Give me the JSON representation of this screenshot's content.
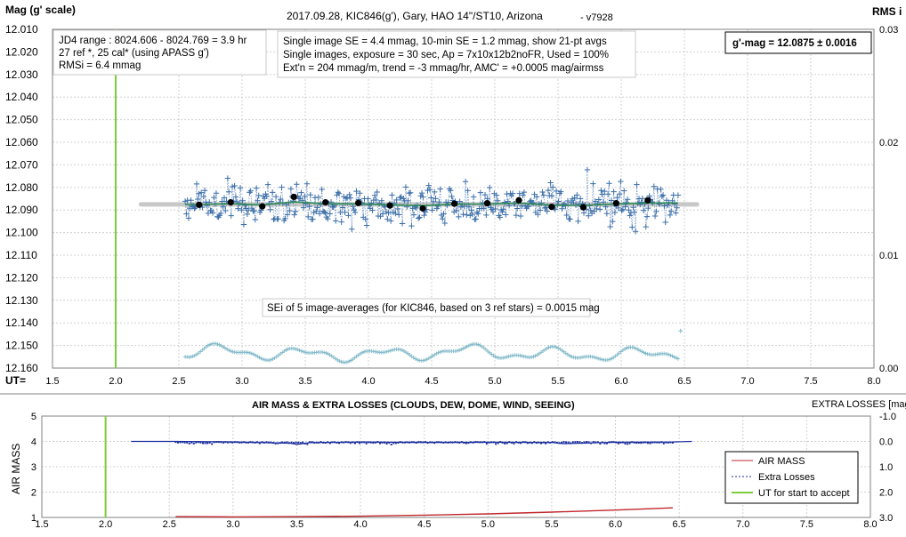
{
  "colors": {
    "points": "#3b6ea8",
    "smooth": "#2e8b57",
    "hline": "#c8c8c8",
    "accept_line": "#7ccc3c",
    "rms": "#7fb8c8",
    "airmass": "#c0282d",
    "extra_losses": "#1c2f9e",
    "grid": "#d0d0d0"
  },
  "top_chart": {
    "title": "2017.09.28,  KIC846(g'),  Gary,  HAO 14\"/ST10, Arizona",
    "version": "- v7928",
    "y_label": "Mag (g' scale)",
    "y2_label": "RMS i",
    "x_label": "UT=",
    "info_box_1": [
      "JD4 range : 8024.606 - 8024.769 =  3.9 hr",
      "27 ref *, 25 cal* (using APASS g')",
      "RMSi = 6.4 mmag"
    ],
    "info_box_2": [
      "Single image SE = 4.4 mmag, 10-min SE = 1.2 mmag, show 21-pt avgs",
      "Single images, exposure = 30 sec, Ap = 7x10x12b2noFR, Used = 100%",
      "Ext'n = 204 mmag/m, trend =  -3 mmag/hr, AMC' = +0.0005 mag/airmss"
    ],
    "result_box": "g'-mag = 12.0875 ± 0.0016",
    "sei_box": "SEi of 5 image-averages (for KIC846, based on 3 ref stars) = 0.0015 mag",
    "x_ticks": [
      "1.5",
      "2.0",
      "2.5",
      "3.0",
      "3.5",
      "4.0",
      "4.5",
      "5.0",
      "5.5",
      "6.0",
      "6.5",
      "7.0",
      "7.5",
      "8.0"
    ],
    "y_ticks": [
      "12.010",
      "12.020",
      "12.030",
      "12.040",
      "12.050",
      "12.060",
      "12.070",
      "12.080",
      "12.090",
      "12.100",
      "12.110",
      "12.120",
      "12.130",
      "12.140",
      "12.150",
      "12.160"
    ],
    "y2_ticks": [
      "0.03",
      "0.02",
      "0.01",
      "0.00"
    ]
  },
  "bottom_chart": {
    "title": "AIR MASS & EXTRA LOSSES (CLOUDS, DEW, DOME, WIND, SEEING)",
    "y_label": "AIR MASS",
    "y2_label": "EXTRA LOSSES [mag]",
    "x_ticks": [
      "1.5",
      "2.0",
      "2.5",
      "3.0",
      "3.5",
      "4.0",
      "4.5",
      "5.0",
      "5.5",
      "6.0",
      "6.5",
      "7.0",
      "7.5",
      "8.0"
    ],
    "y_ticks": [
      "5",
      "4",
      "3",
      "2",
      "1"
    ],
    "y2_ticks": [
      "-1.0",
      "0.0",
      "1.0",
      "2.0",
      "3.0"
    ],
    "legend": [
      "AIR MASS",
      "Extra Losses",
      "UT for start to accept"
    ]
  },
  "chart_data": [
    {
      "type": "scatter",
      "title": "2017.09.28,  KIC846(g'),  Gary,  HAO 14\"/ST10, Arizona",
      "xlabel": "UT=",
      "ylabel": "Mag (g' scale)",
      "xlim": [
        1.5,
        8.0
      ],
      "ylim": [
        12.16,
        12.01
      ],
      "y2lim": [
        0.0,
        0.03
      ],
      "grid": true,
      "accept_ut": 2.0,
      "mean_mag": 12.0875,
      "mean_line_x": [
        2.2,
        6.6
      ],
      "points_x_range": [
        2.55,
        6.45
      ],
      "points_scatter_mag": 0.0044,
      "series": [
        {
          "name": "21-pt avgs",
          "x": [
            2.66,
            2.91,
            3.16,
            3.41,
            3.66,
            3.92,
            4.17,
            4.43,
            4.68,
            4.94,
            5.19,
            5.45,
            5.7,
            5.96,
            6.21
          ],
          "y": [
            12.0877,
            12.0866,
            12.0884,
            12.0842,
            12.0866,
            12.0869,
            12.088,
            12.0893,
            12.0872,
            12.087,
            12.0857,
            12.0886,
            12.0888,
            12.087,
            12.0857
          ]
        }
      ],
      "rms_baseline": 0.0012,
      "rms_outlier": {
        "x": 6.47,
        "y": 0.0033
      }
    },
    {
      "type": "line",
      "title": "AIR MASS & EXTRA LOSSES (CLOUDS, DEW, DOME, WIND, SEEING)",
      "ylabel": "AIR MASS",
      "y2label": "EXTRA LOSSES [mag]",
      "xlim": [
        1.5,
        8.0
      ],
      "ylim": [
        1,
        5
      ],
      "y2lim": [
        -1.0,
        3.0
      ],
      "accept_ut": 2.0,
      "legend_position": "lower-right",
      "series": [
        {
          "name": "AIR MASS",
          "x": [
            2.55,
            3.0,
            3.5,
            4.0,
            4.5,
            5.0,
            5.5,
            6.0,
            6.45
          ],
          "y": [
            1.03,
            1.02,
            1.03,
            1.05,
            1.09,
            1.14,
            1.21,
            1.29,
            1.38
          ]
        },
        {
          "name": "Extra Losses",
          "x": [
            2.2,
            2.55,
            3.0,
            3.45,
            3.5,
            3.6,
            4.0,
            4.5,
            5.0,
            5.5,
            5.6,
            6.0,
            6.45,
            6.6
          ],
          "y": [
            0.0,
            0.0,
            0.02,
            0.07,
            0.12,
            0.05,
            0.02,
            0.04,
            0.03,
            0.04,
            0.09,
            0.03,
            0.02,
            0.0
          ]
        }
      ]
    }
  ]
}
